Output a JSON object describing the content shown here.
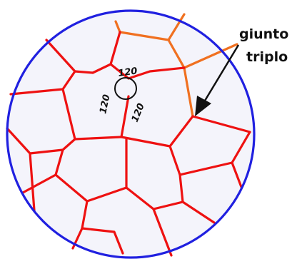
{
  "labels": {
    "angle_top": "120",
    "angle_left": "120",
    "angle_right": "120",
    "callout_line1": "giunto",
    "callout_line2": "triplo"
  },
  "colors": {
    "background": "#ffffff",
    "boundary": "#2020e0",
    "grain_boundary": "#ee1111",
    "grain_boundary_upper": "#f07020",
    "grain_fill": "#f4f4fb",
    "angle_circle": "#111111",
    "arrow": "#111111",
    "text": "#111111"
  }
}
